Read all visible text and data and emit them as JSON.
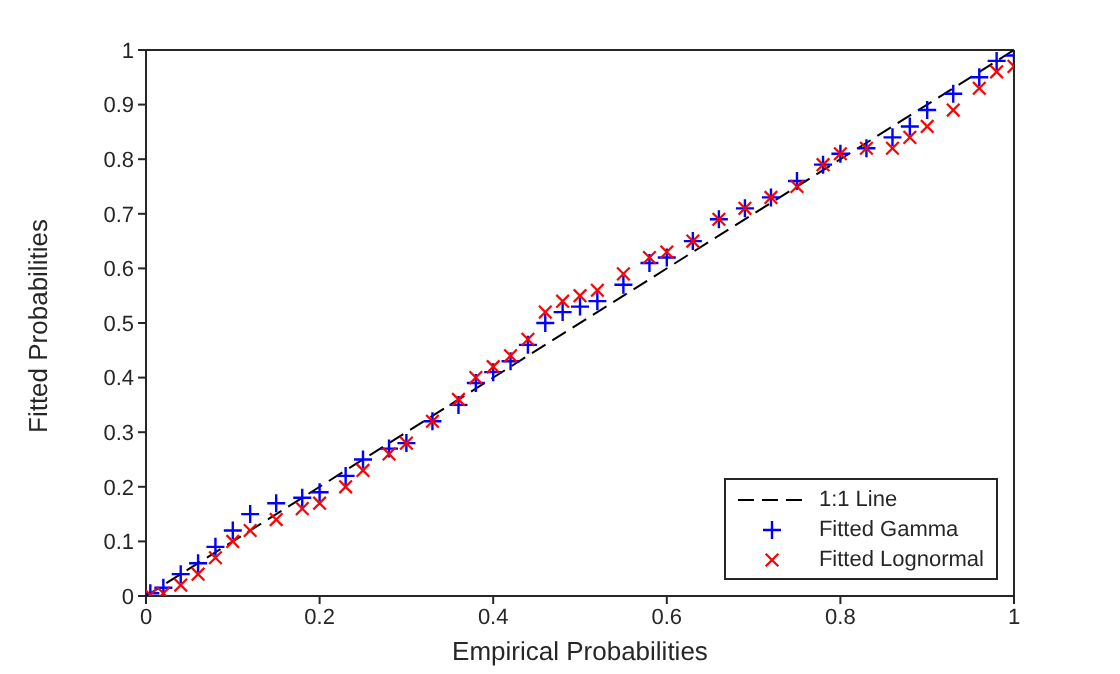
{
  "chart_data": {
    "type": "scatter",
    "xlabel": "Empirical Probabilities",
    "ylabel": "Fitted Probabilities",
    "xlim": [
      0,
      1
    ],
    "ylim": [
      0,
      1
    ],
    "xticks": [
      0,
      0.2,
      0.4,
      0.6,
      0.8,
      1
    ],
    "yticks": [
      0,
      0.1,
      0.2,
      0.3,
      0.4,
      0.5,
      0.6,
      0.7,
      0.8,
      0.9,
      1
    ],
    "legend": "bottom right",
    "series": [
      {
        "name": "1:1 Line",
        "type": "line",
        "line_style": "dashed",
        "marker": "none",
        "color": "#000000",
        "x": [
          0,
          1
        ],
        "values": [
          0,
          1
        ]
      },
      {
        "name": "Fitted Gamma",
        "marker": "plus",
        "color": "#0000ff",
        "x": [
          0.005,
          0.02,
          0.04,
          0.06,
          0.08,
          0.1,
          0.12,
          0.15,
          0.18,
          0.2,
          0.23,
          0.25,
          0.28,
          0.3,
          0.33,
          0.36,
          0.38,
          0.4,
          0.42,
          0.44,
          0.46,
          0.48,
          0.5,
          0.52,
          0.55,
          0.58,
          0.6,
          0.63,
          0.66,
          0.69,
          0.72,
          0.75,
          0.78,
          0.8,
          0.83,
          0.86,
          0.88,
          0.9,
          0.93,
          0.96,
          0.98,
          1.0
        ],
        "values": [
          0.005,
          0.015,
          0.04,
          0.06,
          0.09,
          0.12,
          0.15,
          0.17,
          0.18,
          0.19,
          0.22,
          0.25,
          0.27,
          0.28,
          0.32,
          0.35,
          0.39,
          0.41,
          0.43,
          0.46,
          0.5,
          0.52,
          0.53,
          0.54,
          0.57,
          0.61,
          0.62,
          0.65,
          0.69,
          0.71,
          0.73,
          0.76,
          0.79,
          0.81,
          0.82,
          0.84,
          0.86,
          0.89,
          0.92,
          0.95,
          0.98,
          0.99
        ]
      },
      {
        "name": "Fitted Lognormal",
        "marker": "cross",
        "color": "#ff0000",
        "x": [
          0.005,
          0.02,
          0.04,
          0.06,
          0.08,
          0.1,
          0.12,
          0.15,
          0.18,
          0.2,
          0.23,
          0.25,
          0.28,
          0.3,
          0.33,
          0.36,
          0.38,
          0.4,
          0.42,
          0.44,
          0.46,
          0.48,
          0.5,
          0.52,
          0.55,
          0.58,
          0.6,
          0.63,
          0.66,
          0.69,
          0.72,
          0.75,
          0.78,
          0.8,
          0.83,
          0.86,
          0.88,
          0.9,
          0.93,
          0.96,
          0.98,
          1.0
        ],
        "values": [
          0.002,
          0.005,
          0.02,
          0.04,
          0.07,
          0.1,
          0.12,
          0.14,
          0.16,
          0.17,
          0.2,
          0.23,
          0.26,
          0.28,
          0.32,
          0.36,
          0.4,
          0.42,
          0.44,
          0.47,
          0.52,
          0.54,
          0.55,
          0.56,
          0.59,
          0.62,
          0.63,
          0.65,
          0.69,
          0.71,
          0.73,
          0.75,
          0.79,
          0.81,
          0.82,
          0.82,
          0.84,
          0.86,
          0.89,
          0.93,
          0.96,
          0.97
        ]
      }
    ]
  }
}
